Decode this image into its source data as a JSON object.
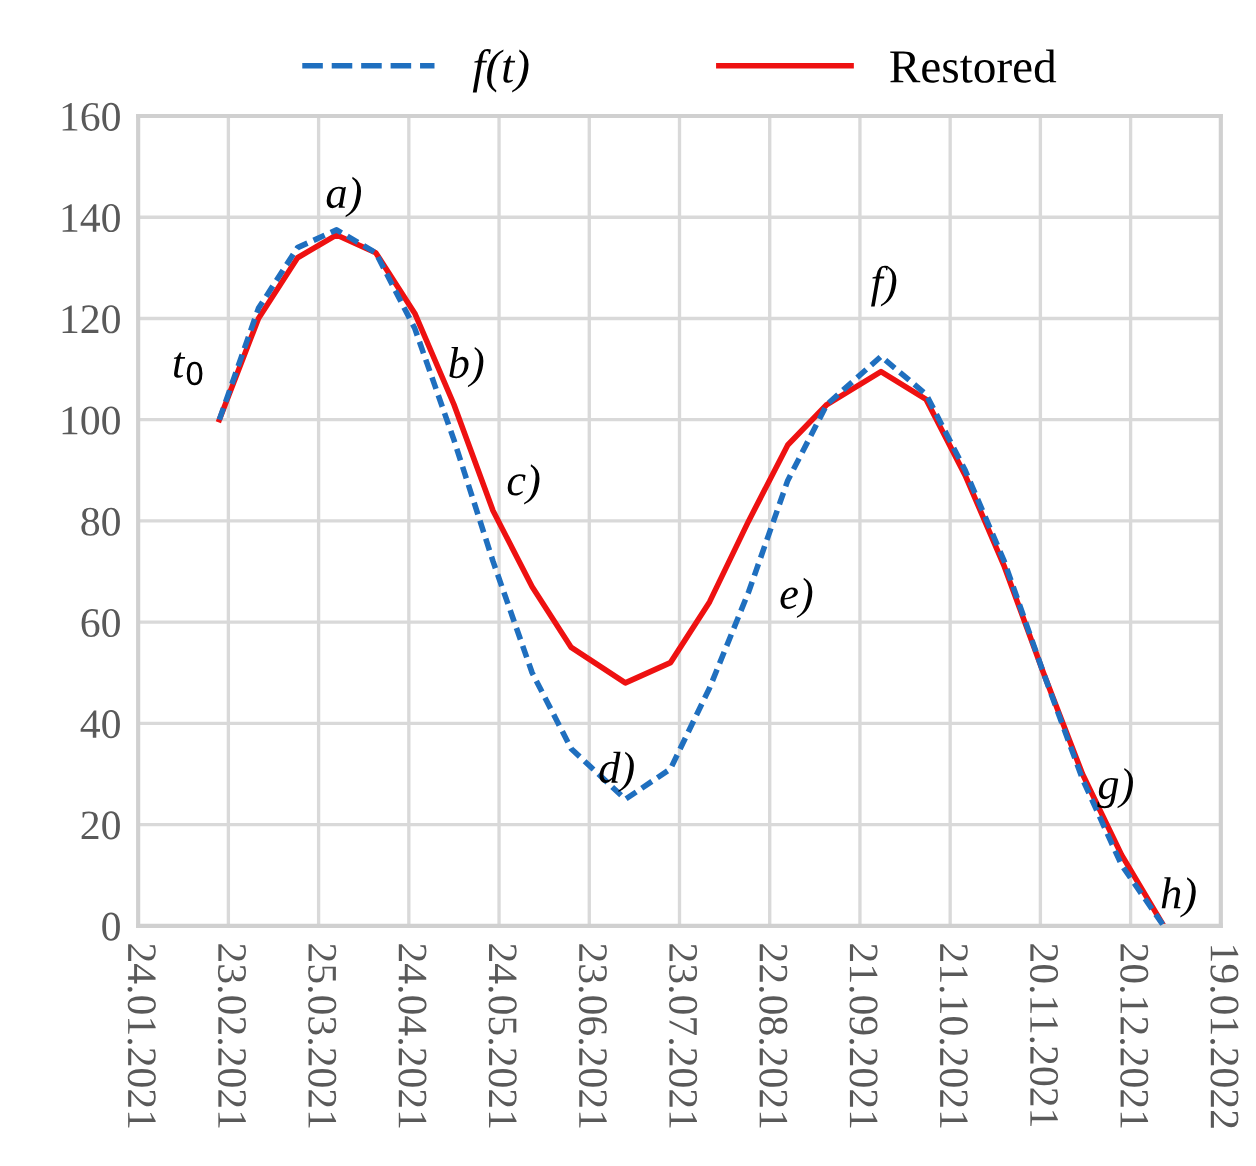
{
  "chart_data": {
    "type": "line",
    "legend": "top",
    "grid": true,
    "x": [
      "2021-02-20",
      "2021-03-05",
      "2021-03-18",
      "2021-03-31",
      "2021-04-13",
      "2021-04-26",
      "2021-05-09",
      "2021-05-22",
      "2021-06-04",
      "2021-06-17",
      "2021-07-05",
      "2021-07-20",
      "2021-08-02",
      "2021-08-15",
      "2021-08-28",
      "2021-09-10",
      "2021-09-28",
      "2021-10-13",
      "2021-10-26",
      "2021-11-08",
      "2021-11-21",
      "2021-12-04",
      "2021-12-17",
      "2021-12-31"
    ],
    "series": [
      {
        "name": "f(t)",
        "color": "#1f6fbf",
        "line_style": "dashed",
        "values": [
          100,
          122,
          134,
          137.5,
          133,
          118,
          96,
          72,
          50,
          35,
          25,
          31,
          47,
          66,
          88,
          103,
          112.5,
          105,
          90,
          72,
          50,
          29,
          12,
          0
        ]
      },
      {
        "name": "Restored",
        "color": "#ee1111",
        "line_style": "solid",
        "values": [
          100,
          120,
          132,
          136.5,
          133,
          121,
          103,
          82,
          67,
          55,
          48,
          52,
          64,
          80,
          95,
          103,
          109.5,
          104,
          89,
          71,
          50,
          30,
          14,
          0
        ]
      }
    ],
    "xlim": [
      "2021-01-24",
      "2022-01-19"
    ],
    "xticks": [
      {
        "value": "2021-01-24",
        "label": "24.01.2021"
      },
      {
        "value": "2021-02-23",
        "label": "23.02.2021"
      },
      {
        "value": "2021-03-25",
        "label": "25.03.2021"
      },
      {
        "value": "2021-04-24",
        "label": "24.04.2021"
      },
      {
        "value": "2021-05-24",
        "label": "24.05.2021"
      },
      {
        "value": "2021-06-23",
        "label": "23.06.2021"
      },
      {
        "value": "2021-07-23",
        "label": "23.07.2021"
      },
      {
        "value": "2021-08-22",
        "label": "22.08.2021"
      },
      {
        "value": "2021-09-21",
        "label": "21.09.2021"
      },
      {
        "value": "2021-10-21",
        "label": "21.10.2021"
      },
      {
        "value": "2021-11-20",
        "label": "20.11.2021"
      },
      {
        "value": "2021-12-20",
        "label": "20.12.2021"
      },
      {
        "value": "2022-01-19",
        "label": "19.01.2022"
      }
    ],
    "ylim": [
      0,
      160
    ],
    "yticks": [
      0,
      20,
      40,
      60,
      80,
      100,
      120,
      140,
      160
    ],
    "annotations": [
      "t$_{0}$",
      "a)",
      "b)",
      "c)",
      "d)",
      "e)",
      "f)",
      "g)",
      "h)"
    ]
  }
}
